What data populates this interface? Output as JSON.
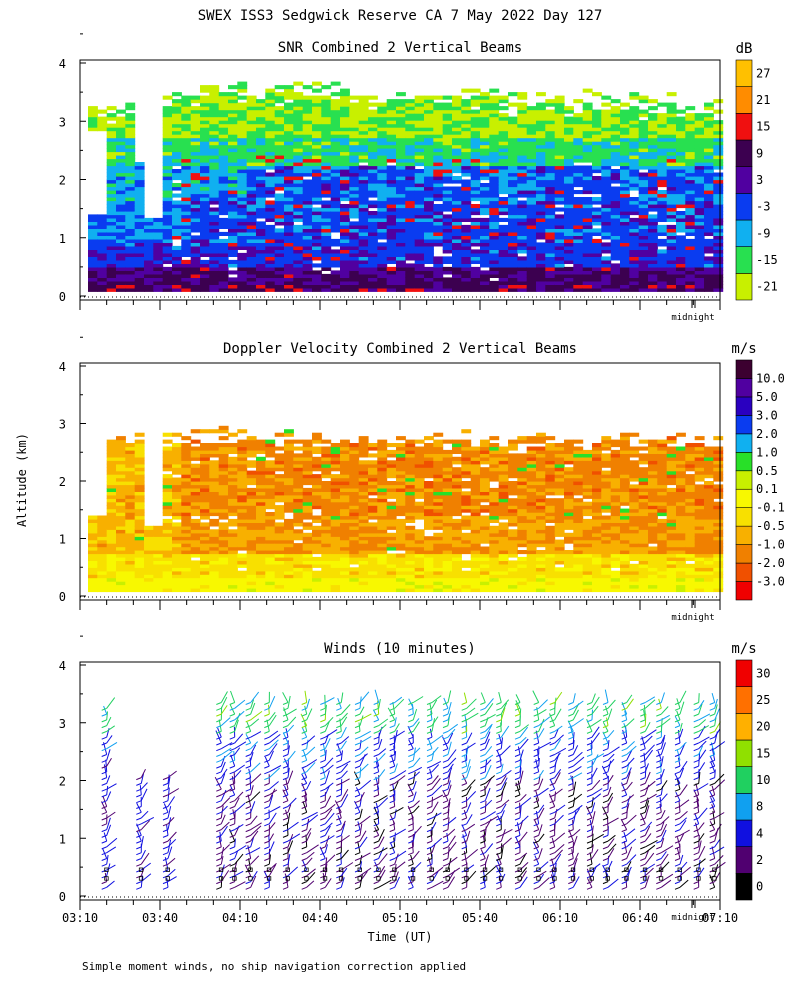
{
  "chart_data": {
    "title": "SWEX ISS3 Sedgwick Reserve CA   7 May 2022 Day 127",
    "xlabel": "Time (UT)",
    "ylabel": "Altitude (km)",
    "x_ticks": [
      "03:10",
      "03:40",
      "04:10",
      "04:40",
      "05:10",
      "05:40",
      "06:10",
      "06:40",
      "07:10"
    ],
    "x_range_minutes": [
      190,
      430
    ],
    "y_ticks": [
      "0",
      "1",
      "2",
      "3",
      "4"
    ],
    "ylim": [
      0,
      4
    ],
    "midnight_label": "midnight",
    "footnote": "Simple moment winds, no ship navigation correction applied",
    "panels": [
      {
        "type": "heatmap",
        "title": "SNR Combined 2 Vertical Beams",
        "unit": "dB",
        "colorbar": {
          "colors": [
            "#c8f000",
            "#28e050",
            "#10b0f0",
            "#0a3cf0",
            "#5000a0",
            "#3c0050",
            "#f01010",
            "#ff8c00",
            "#ffc000"
          ],
          "labels": [
            "-21",
            "-15",
            "-9",
            "-3",
            "3",
            "9",
            "15",
            "21",
            "27"
          ]
        },
        "approx_layers": [
          {
            "name": "low strong",
            "alt_km": [
              0.1,
              0.5
            ],
            "value_db": 3
          },
          {
            "name": "mid",
            "alt_km": [
              0.5,
              2.2
            ],
            "value_db": -3
          },
          {
            "name": "upper weak",
            "alt_km": [
              2.2,
              3.4
            ],
            "value_db": -15
          }
        ]
      },
      {
        "type": "heatmap",
        "title": "Doppler Velocity Combined 2 Vertical Beams",
        "unit": "m/s",
        "colorbar": {
          "colors": [
            "#f00000",
            "#f05000",
            "#f08000",
            "#f8b000",
            "#f8e000",
            "#f8f800",
            "#c8f000",
            "#28e028",
            "#10b0f0",
            "#0a3cf0",
            "#2a00c0",
            "#5000a0",
            "#3c0030"
          ],
          "labels": [
            "-3.0",
            "-2.0",
            "-1.0",
            "-0.5",
            "-0.1",
            "0.1",
            "0.5",
            "1.0",
            "2.0",
            "3.0",
            "5.0",
            "10.0"
          ]
        },
        "approx_layers": [
          {
            "name": "near surface",
            "alt_km": [
              0.1,
              0.6
            ],
            "value_ms": -0.1
          },
          {
            "name": "mid",
            "alt_km": [
              0.6,
              2.6
            ],
            "value_ms": -1.0
          }
        ]
      },
      {
        "type": "wind_barbs",
        "title": "Winds (10 minutes)",
        "unit": "m/s",
        "colorbar": {
          "colors": [
            "#000000",
            "#500070",
            "#1010e0",
            "#10a0f0",
            "#20d060",
            "#90e000",
            "#ffb000",
            "#ff7000",
            "#f00000"
          ],
          "labels": [
            "0",
            "2",
            "4",
            "8",
            "10",
            "15",
            "20",
            "25",
            "30"
          ]
        },
        "profiles_time": [
          "03:20",
          "03:33",
          "03:43",
          "04:03",
          "04:08",
          "04:14",
          "04:21",
          "04:28",
          "04:35",
          "04:42",
          "04:48",
          "04:55",
          "05:02",
          "05:08",
          "05:15",
          "05:22",
          "05:28",
          "05:35",
          "05:42",
          "05:48",
          "05:55",
          "06:02",
          "06:08",
          "06:15",
          "06:22",
          "06:28",
          "06:35",
          "06:42",
          "06:48",
          "06:55",
          "07:02",
          "07:08"
        ]
      }
    ]
  }
}
